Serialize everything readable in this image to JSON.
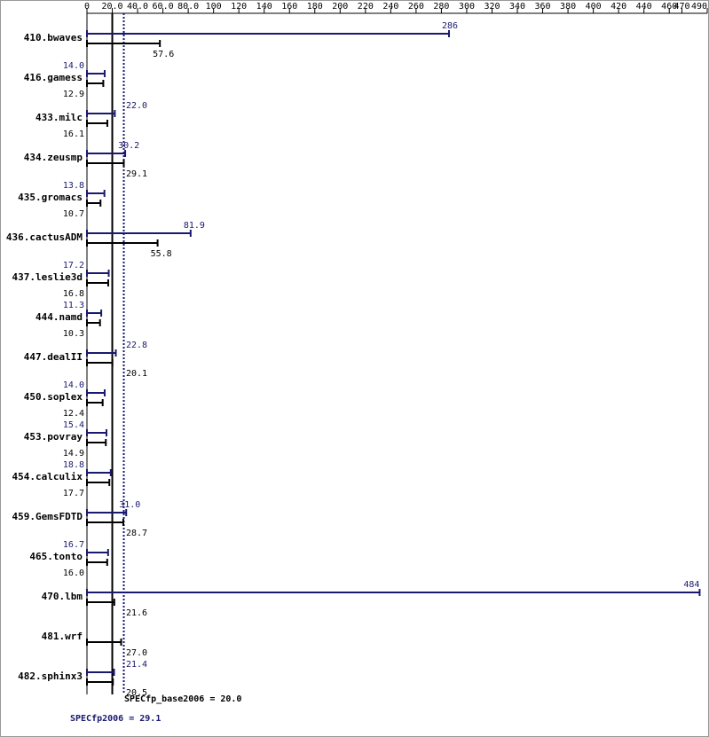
{
  "chart_data": {
    "type": "bar",
    "orientation": "horizontal",
    "categories": [
      "410.bwaves",
      "416.gamess",
      "433.milc",
      "434.zeusmp",
      "435.gromacs",
      "436.cactusADM",
      "437.leslie3d",
      "444.namd",
      "447.dealII",
      "450.soplex",
      "453.povray",
      "454.calculix",
      "459.GemsFDTD",
      "465.tonto",
      "470.lbm",
      "481.wrf",
      "482.sphinx3"
    ],
    "series": [
      {
        "color": "#191970",
        "values": [
          286,
          14.0,
          22.0,
          30.2,
          13.8,
          81.9,
          17.2,
          11.3,
          22.8,
          14.0,
          15.4,
          18.8,
          31.0,
          16.7,
          484,
          null,
          21.4
        ],
        "value_labels": [
          "286",
          "14.0",
          "22.0",
          "30.2",
          "13.8",
          "81.9",
          "17.2",
          "11.3",
          "22.8",
          "14.0",
          "15.4",
          "18.8",
          "31.0",
          "16.7",
          "484",
          null,
          "21.4"
        ]
      },
      {
        "color": "#000000",
        "values": [
          57.6,
          12.9,
          16.1,
          29.1,
          10.7,
          55.8,
          16.8,
          10.3,
          20.1,
          12.4,
          14.9,
          17.7,
          28.7,
          16.0,
          21.6,
          27.0,
          20.5
        ],
        "value_labels": [
          "57.6",
          "12.9",
          "16.1",
          "29.1",
          "10.7",
          "55.8",
          "16.8",
          "10.3",
          "20.1",
          "12.4",
          "14.9",
          "17.7",
          "28.7",
          "16.0",
          "21.6",
          "27.0",
          "20.5"
        ]
      }
    ],
    "xlim": [
      0,
      490
    ],
    "xticks": [
      0,
      {
        "value": 20,
        "label": "20.0"
      },
      {
        "value": 40,
        "label": "40.0"
      },
      {
        "value": 60,
        "label": "60.0"
      },
      {
        "value": 80,
        "label": "80.0"
      },
      100,
      120,
      140,
      160,
      180,
      200,
      220,
      240,
      260,
      280,
      300,
      320,
      340,
      360,
      380,
      400,
      420,
      440,
      460,
      470,
      490
    ],
    "reference_lines": [
      {
        "label": "SPECfp_base2006 = 20.0",
        "value": 20,
        "color": "#000000",
        "style": "solid"
      },
      {
        "label": "SPECfp2006 = 29.1",
        "value": 29.1,
        "color": "#191970",
        "style": "dotted"
      }
    ]
  }
}
